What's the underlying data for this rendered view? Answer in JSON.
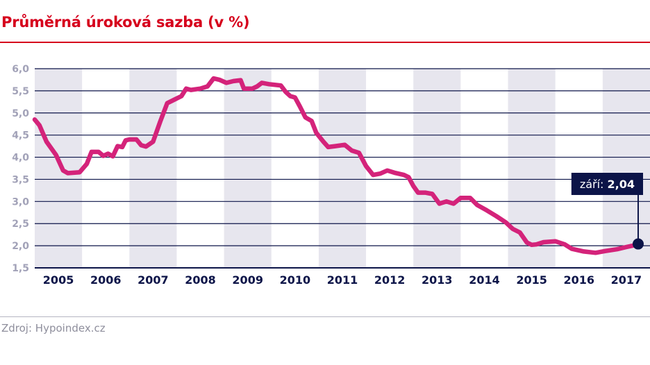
{
  "title": "Průměrná úroková sazba (v %)",
  "source": "Zdroj: Hypoindex.cz",
  "colors": {
    "title": "#d6001c",
    "line": "#d4237a",
    "band": "#e7e6ee",
    "grid": "#0c1448",
    "annotation": "#0c1448"
  },
  "chart_data": {
    "type": "line",
    "title": "Průměrná úroková sazba (v %)",
    "xlabel": "",
    "ylabel": "",
    "ylim": [
      1.5,
      6.0
    ],
    "yticks": [
      1.5,
      2.0,
      2.5,
      3.0,
      3.5,
      4.0,
      4.5,
      5.0,
      5.5,
      6.0
    ],
    "ytick_labels": [
      "1,5",
      "2,0",
      "2,5",
      "3,0",
      "3,5",
      "4,0",
      "4,5",
      "5,0",
      "5,5",
      "6,0"
    ],
    "xlim": [
      2005.0,
      2018.0
    ],
    "categories": [
      "2005",
      "2006",
      "2007",
      "2008",
      "2009",
      "2010",
      "2011",
      "2012",
      "2013",
      "2014",
      "2015",
      "2016",
      "2017"
    ],
    "grid": true,
    "shaded_years": [
      "2005",
      "2007",
      "2009",
      "2011",
      "2013",
      "2015",
      "2017"
    ],
    "series": [
      {
        "values": [
          {
            "x": 2005.0,
            "y": 4.85
          },
          {
            "x": 2005.1,
            "y": 4.72
          },
          {
            "x": 2005.25,
            "y": 4.35
          },
          {
            "x": 2005.45,
            "y": 4.05
          },
          {
            "x": 2005.6,
            "y": 3.7
          },
          {
            "x": 2005.7,
            "y": 3.64
          },
          {
            "x": 2005.95,
            "y": 3.66
          },
          {
            "x": 2006.1,
            "y": 3.85
          },
          {
            "x": 2006.2,
            "y": 4.12
          },
          {
            "x": 2006.35,
            "y": 4.12
          },
          {
            "x": 2006.45,
            "y": 4.03
          },
          {
            "x": 2006.55,
            "y": 4.08
          },
          {
            "x": 2006.65,
            "y": 4.02
          },
          {
            "x": 2006.75,
            "y": 4.25
          },
          {
            "x": 2006.85,
            "y": 4.23
          },
          {
            "x": 2006.92,
            "y": 4.38
          },
          {
            "x": 2007.0,
            "y": 4.4
          },
          {
            "x": 2007.15,
            "y": 4.4
          },
          {
            "x": 2007.25,
            "y": 4.27
          },
          {
            "x": 2007.35,
            "y": 4.24
          },
          {
            "x": 2007.5,
            "y": 4.35
          },
          {
            "x": 2007.65,
            "y": 4.8
          },
          {
            "x": 2007.8,
            "y": 5.22
          },
          {
            "x": 2007.95,
            "y": 5.3
          },
          {
            "x": 2008.1,
            "y": 5.38
          },
          {
            "x": 2008.2,
            "y": 5.55
          },
          {
            "x": 2008.3,
            "y": 5.52
          },
          {
            "x": 2008.5,
            "y": 5.55
          },
          {
            "x": 2008.65,
            "y": 5.6
          },
          {
            "x": 2008.78,
            "y": 5.78
          },
          {
            "x": 2008.9,
            "y": 5.75
          },
          {
            "x": 2009.05,
            "y": 5.68
          },
          {
            "x": 2009.2,
            "y": 5.72
          },
          {
            "x": 2009.35,
            "y": 5.74
          },
          {
            "x": 2009.42,
            "y": 5.55
          },
          {
            "x": 2009.6,
            "y": 5.55
          },
          {
            "x": 2009.7,
            "y": 5.6
          },
          {
            "x": 2009.8,
            "y": 5.68
          },
          {
            "x": 2009.95,
            "y": 5.65
          },
          {
            "x": 2010.2,
            "y": 5.62
          },
          {
            "x": 2010.3,
            "y": 5.48
          },
          {
            "x": 2010.4,
            "y": 5.38
          },
          {
            "x": 2010.5,
            "y": 5.35
          },
          {
            "x": 2010.6,
            "y": 5.15
          },
          {
            "x": 2010.72,
            "y": 4.9
          },
          {
            "x": 2010.85,
            "y": 4.82
          },
          {
            "x": 2010.95,
            "y": 4.55
          },
          {
            "x": 2011.1,
            "y": 4.35
          },
          {
            "x": 2011.2,
            "y": 4.23
          },
          {
            "x": 2011.35,
            "y": 4.25
          },
          {
            "x": 2011.55,
            "y": 4.28
          },
          {
            "x": 2011.7,
            "y": 4.15
          },
          {
            "x": 2011.85,
            "y": 4.1
          },
          {
            "x": 2012.0,
            "y": 3.8
          },
          {
            "x": 2012.15,
            "y": 3.6
          },
          {
            "x": 2012.3,
            "y": 3.63
          },
          {
            "x": 2012.45,
            "y": 3.7
          },
          {
            "x": 2012.6,
            "y": 3.65
          },
          {
            "x": 2012.8,
            "y": 3.6
          },
          {
            "x": 2012.9,
            "y": 3.55
          },
          {
            "x": 2013.0,
            "y": 3.35
          },
          {
            "x": 2013.1,
            "y": 3.2
          },
          {
            "x": 2013.25,
            "y": 3.2
          },
          {
            "x": 2013.4,
            "y": 3.17
          },
          {
            "x": 2013.55,
            "y": 2.95
          },
          {
            "x": 2013.7,
            "y": 3.0
          },
          {
            "x": 2013.85,
            "y": 2.95
          },
          {
            "x": 2014.0,
            "y": 3.08
          },
          {
            "x": 2014.2,
            "y": 3.08
          },
          {
            "x": 2014.35,
            "y": 2.92
          },
          {
            "x": 2014.55,
            "y": 2.8
          },
          {
            "x": 2014.75,
            "y": 2.67
          },
          {
            "x": 2014.95,
            "y": 2.53
          },
          {
            "x": 2015.1,
            "y": 2.38
          },
          {
            "x": 2015.25,
            "y": 2.3
          },
          {
            "x": 2015.4,
            "y": 2.07
          },
          {
            "x": 2015.5,
            "y": 2.02
          },
          {
            "x": 2015.6,
            "y": 2.03
          },
          {
            "x": 2015.75,
            "y": 2.08
          },
          {
            "x": 2016.0,
            "y": 2.1
          },
          {
            "x": 2016.2,
            "y": 2.03
          },
          {
            "x": 2016.35,
            "y": 1.93
          },
          {
            "x": 2016.6,
            "y": 1.87
          },
          {
            "x": 2016.85,
            "y": 1.84
          },
          {
            "x": 2017.05,
            "y": 1.88
          },
          {
            "x": 2017.3,
            "y": 1.92
          },
          {
            "x": 2017.5,
            "y": 1.97
          },
          {
            "x": 2017.67,
            "y": 2.01
          },
          {
            "x": 2017.75,
            "y": 2.04
          }
        ]
      }
    ],
    "annotations": [
      {
        "label": "září",
        "value": "2,04",
        "x": 2017.75,
        "y": 2.04
      }
    ]
  }
}
